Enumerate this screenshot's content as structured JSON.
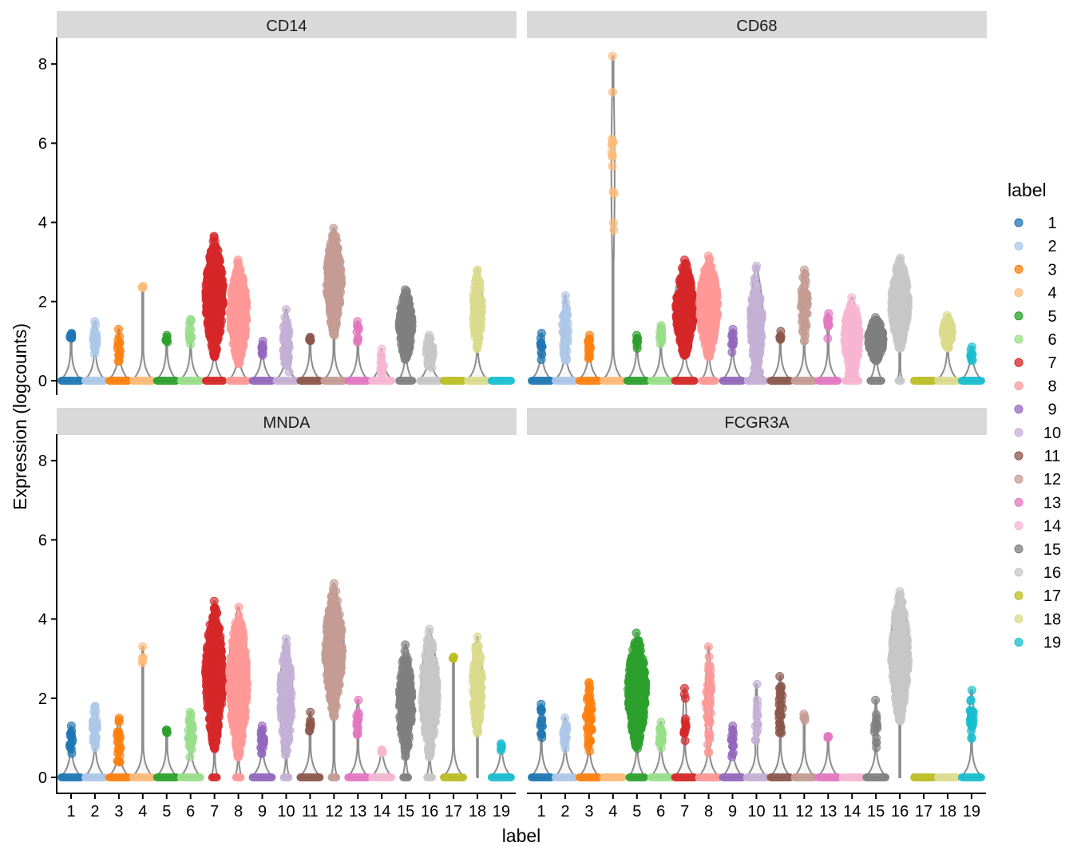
{
  "chart_data": {
    "type": "violin",
    "xlabel": "label",
    "ylabel": "Expression (logcounts)",
    "ylim": [
      0,
      8.6
    ],
    "yticks": [
      "0",
      "2",
      "4",
      "6",
      "8"
    ],
    "categories": [
      "1",
      "2",
      "3",
      "4",
      "5",
      "6",
      "7",
      "8",
      "9",
      "10",
      "11",
      "12",
      "13",
      "14",
      "15",
      "16",
      "17",
      "18",
      "19"
    ],
    "legend": {
      "title": "label",
      "placement": "right"
    },
    "colors": [
      "#1f77b4",
      "#aec7e8",
      "#ff7f0e",
      "#ffbb78",
      "#2ca02c",
      "#98df8a",
      "#d62728",
      "#ff9896",
      "#9467bd",
      "#c5b0d5",
      "#8c564b",
      "#c49c94",
      "#e377c2",
      "#f7b6d2",
      "#7f7f7f",
      "#c7c7c7",
      "#bcbd22",
      "#dbdb8d",
      "#17becf"
    ],
    "value_fields": [
      "max",
      "nonzero_min",
      "density",
      "zero_share"
    ],
    "facets": [
      {
        "title": "CD14",
        "values": [
          [
            1.2,
            1.0,
            0.1,
            1
          ],
          [
            1.5,
            0.6,
            0.2,
            1
          ],
          [
            1.3,
            0.3,
            0.15,
            1
          ],
          [
            2.35,
            2.35,
            0.02,
            1
          ],
          [
            1.15,
            0.9,
            0.1,
            1
          ],
          [
            1.55,
            0.9,
            0.15,
            1
          ],
          [
            3.65,
            0.6,
            0.95,
            0.9
          ],
          [
            3.05,
            0.4,
            0.9,
            0.9
          ],
          [
            1.0,
            0.55,
            0.12,
            1
          ],
          [
            1.8,
            0.2,
            0.35,
            1
          ],
          [
            1.1,
            0.95,
            0.08,
            1
          ],
          [
            3.85,
            1.1,
            0.8,
            1
          ],
          [
            1.5,
            0.9,
            0.12,
            1
          ],
          [
            0.8,
            0.1,
            0.15,
            1
          ],
          [
            2.3,
            0.5,
            0.7,
            0.7
          ],
          [
            1.15,
            0.3,
            0.35,
            1
          ],
          [
            0,
            0,
            0,
            1
          ],
          [
            2.8,
            0.8,
            0.5,
            1
          ],
          [
            0,
            0,
            0,
            1
          ]
        ]
      },
      {
        "title": "CD68",
        "values": [
          [
            1.2,
            0.5,
            0.12,
            1
          ],
          [
            2.15,
            0.4,
            0.3,
            1
          ],
          [
            1.15,
            0.55,
            0.15,
            1
          ],
          [
            8.2,
            2.3,
            0.15,
            1
          ],
          [
            1.15,
            0.8,
            0.1,
            1
          ],
          [
            1.4,
            0.8,
            0.15,
            1
          ],
          [
            3.05,
            0.6,
            0.95,
            1
          ],
          [
            3.15,
            0.6,
            0.95,
            0.7
          ],
          [
            1.3,
            0.7,
            0.12,
            1
          ],
          [
            2.9,
            0.1,
            0.6,
            0.9
          ],
          [
            1.25,
            1.0,
            0.08,
            1
          ],
          [
            2.8,
            1.0,
            0.35,
            1
          ],
          [
            1.7,
            1.05,
            0.1,
            1
          ],
          [
            2.1,
            0.1,
            0.8,
            0.7
          ],
          [
            1.6,
            0.5,
            0.8,
            0.6
          ],
          [
            3.1,
            0.8,
            0.9,
            0.2
          ],
          [
            0,
            0,
            0,
            1
          ],
          [
            1.65,
            0.8,
            0.5,
            1
          ],
          [
            0.85,
            0.5,
            0.1,
            1
          ]
        ]
      },
      {
        "title": "MNDA",
        "values": [
          [
            1.3,
            0.5,
            0.15,
            1
          ],
          [
            1.8,
            0.7,
            0.25,
            1
          ],
          [
            1.5,
            0.3,
            0.2,
            1
          ],
          [
            3.3,
            2.7,
            0.05,
            1
          ],
          [
            1.2,
            1.1,
            0.05,
            1
          ],
          [
            1.65,
            0.5,
            0.25,
            1
          ],
          [
            4.45,
            0.7,
            0.95,
            0.3
          ],
          [
            4.3,
            0.5,
            0.95,
            0.3
          ],
          [
            1.3,
            0.5,
            0.2,
            1
          ],
          [
            3.5,
            0.5,
            0.6,
            0.3
          ],
          [
            1.65,
            0.9,
            0.1,
            1
          ],
          [
            4.9,
            1.5,
            0.9,
            0.3
          ],
          [
            1.95,
            0.9,
            0.15,
            1
          ],
          [
            0.7,
            0.6,
            0.05,
            1
          ],
          [
            3.35,
            0.5,
            0.7,
            0.3
          ],
          [
            3.75,
            0.5,
            0.8,
            0.3
          ],
          [
            3.0,
            3.0,
            0.02,
            1
          ],
          [
            3.55,
            1.1,
            0.5,
            0
          ],
          [
            0.85,
            0.6,
            0.05,
            1
          ]
        ]
      },
      {
        "title": "FCGR3A",
        "values": [
          [
            1.85,
            0.8,
            0.15,
            1
          ],
          [
            1.5,
            0.7,
            0.2,
            1
          ],
          [
            2.4,
            0.6,
            0.3,
            1
          ],
          [
            0,
            0,
            0,
            1
          ],
          [
            3.65,
            0.7,
            0.95,
            0.8
          ],
          [
            1.4,
            0.7,
            0.2,
            1
          ],
          [
            2.25,
            0.65,
            0.15,
            1
          ],
          [
            3.3,
            0.5,
            0.3,
            1
          ],
          [
            1.3,
            0.5,
            0.15,
            1
          ],
          [
            2.35,
            0.3,
            0.15,
            1
          ],
          [
            2.55,
            0.9,
            0.25,
            1
          ],
          [
            1.6,
            1.35,
            0.05,
            1
          ],
          [
            1.0,
            1.0,
            0.02,
            1
          ],
          [
            0,
            0,
            0,
            1
          ],
          [
            1.95,
            0.5,
            0.15,
            1
          ],
          [
            4.7,
            1.4,
            0.9,
            0
          ],
          [
            0,
            0,
            0,
            1
          ],
          [
            0,
            0,
            0,
            1
          ],
          [
            2.2,
            0.9,
            0.2,
            1
          ]
        ]
      }
    ]
  }
}
